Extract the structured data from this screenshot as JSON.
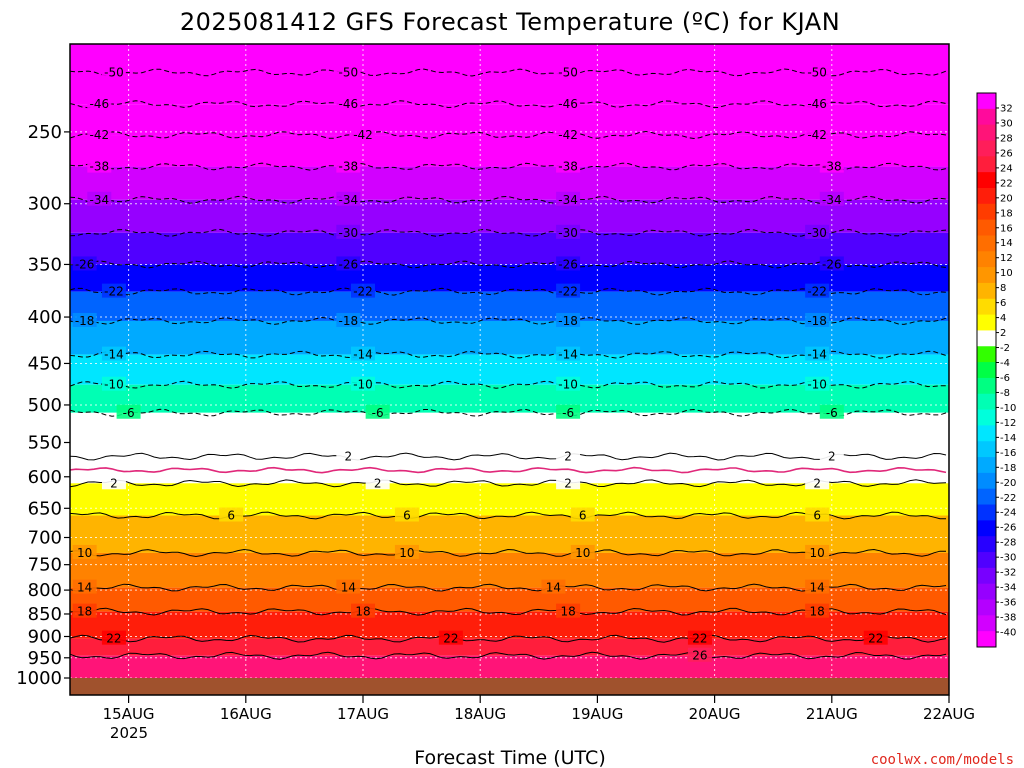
{
  "chart_data": {
    "type": "heatmap",
    "title": "2025081412 GFS Forecast Temperature (ºC) for KJAN",
    "xlabel": "Forecast Time (UTC)",
    "ylabel": "",
    "credit": "coolwx.com/models",
    "x_ticks": [
      "15AUG",
      "16AUG",
      "17AUG",
      "18AUG",
      "19AUG",
      "20AUG",
      "21AUG",
      "22AUG"
    ],
    "x_tick_year": "2025",
    "x_range": [
      "2025-08-14T12",
      "2025-08-22T00"
    ],
    "y_ticks": [
      250,
      300,
      350,
      400,
      450,
      500,
      550,
      600,
      650,
      700,
      750,
      800,
      850,
      900,
      950,
      1000
    ],
    "ylim": [
      200,
      1010
    ],
    "y_scale": "log (pressure, hPa)",
    "colorbar": {
      "labels": [
        "32",
        "30",
        "28",
        "26",
        "24",
        "22",
        "20",
        "18",
        "16",
        "14",
        "12",
        "10",
        "8",
        "6",
        "4",
        "2",
        "-2",
        "-4",
        "-6",
        "-8",
        "-10",
        "-12",
        "-14",
        "-16",
        "-18",
        "-20",
        "-22",
        "-24",
        "-26",
        "-28",
        "-30",
        "-32",
        "-34",
        "-36",
        "-38",
        "-40"
      ],
      "colors": [
        "#ff00ff",
        "#ff0a9c",
        "#ff1478",
        "#ff1e5a",
        "#ff1e3c",
        "#ff0000",
        "#ff1e0a",
        "#ff3c00",
        "#ff5a00",
        "#ff6e00",
        "#ff8200",
        "#ff9600",
        "#ffb400",
        "#ffdc00",
        "#ffff00",
        "#ffffff",
        "#32ff00",
        "#00ff46",
        "#00ff82",
        "#00ffb4",
        "#00ffdc",
        "#00e6ff",
        "#00c8ff",
        "#00aaff",
        "#008cff",
        "#0064ff",
        "#0032ff",
        "#0000ff",
        "#2800ff",
        "#5000ff",
        "#7800ff",
        "#9600ff",
        "#b400ff",
        "#d200ff",
        "#ff00ff"
      ]
    },
    "isotherms": [
      {
        "value": -50,
        "p": 215,
        "labels_at": [
          "2025-08-14T21",
          "2025-08-16T21",
          "2025-08-18T18",
          "2025-08-20T21"
        ]
      },
      {
        "value": -46,
        "p": 233,
        "labels_at": [
          "2025-08-14T18",
          "2025-08-16T21",
          "2025-08-18T18",
          "2025-08-20T21"
        ]
      },
      {
        "value": -42,
        "p": 252,
        "labels_at": [
          "2025-08-14T18",
          "2025-08-17T00",
          "2025-08-18T18",
          "2025-08-20T21"
        ]
      },
      {
        "value": -38,
        "p": 273,
        "labels_at": [
          "2025-08-14T18",
          "2025-08-16T21",
          "2025-08-18T18",
          "2025-08-21T00"
        ]
      },
      {
        "value": -34,
        "p": 297,
        "labels_at": [
          "2025-08-14T18",
          "2025-08-16T21",
          "2025-08-18T18",
          "2025-08-21T00"
        ]
      },
      {
        "value": -30,
        "p": 323,
        "labels_at": [
          "2025-08-16T21",
          "2025-08-18T18",
          "2025-08-20T21"
        ]
      },
      {
        "value": -26,
        "p": 350,
        "labels_at": [
          "2025-08-14T15",
          "2025-08-16T21",
          "2025-08-18T18",
          "2025-08-21T00"
        ]
      },
      {
        "value": -22,
        "p": 375,
        "labels_at": [
          "2025-08-14T21",
          "2025-08-17T00",
          "2025-08-18T18",
          "2025-08-20T21"
        ]
      },
      {
        "value": -18,
        "p": 404,
        "labels_at": [
          "2025-08-14T15",
          "2025-08-16T21",
          "2025-08-18T18",
          "2025-08-20T21"
        ]
      },
      {
        "value": -14,
        "p": 440,
        "labels_at": [
          "2025-08-14T21",
          "2025-08-17T00",
          "2025-08-18T18",
          "2025-08-20T21"
        ]
      },
      {
        "value": -10,
        "p": 475,
        "labels_at": [
          "2025-08-14T21",
          "2025-08-17T00",
          "2025-08-18T18",
          "2025-08-20T21"
        ]
      },
      {
        "value": -6,
        "p": 510,
        "labels_at": [
          "2025-08-15T00",
          "2025-08-17T03",
          "2025-08-18T18",
          "2025-08-21T00"
        ]
      },
      {
        "value": 2,
        "p": 570,
        "labels_at": [
          "2025-08-16T21",
          "2025-08-18T18",
          "2025-08-21T00"
        ]
      },
      {
        "value": 2,
        "p": 610,
        "labels_at": [
          "2025-08-14T21",
          "2025-08-17T03",
          "2025-08-18T18",
          "2025-08-20T21"
        ]
      },
      {
        "value": 6,
        "p": 662,
        "labels_at": [
          "2025-08-15T21",
          "2025-08-17T09",
          "2025-08-18T21",
          "2025-08-20T21"
        ]
      },
      {
        "value": 10,
        "p": 728,
        "labels_at": [
          "2025-08-14T15",
          "2025-08-17T09",
          "2025-08-18T21",
          "2025-08-20T21"
        ]
      },
      {
        "value": 14,
        "p": 795,
        "labels_at": [
          "2025-08-14T15",
          "2025-08-16T21",
          "2025-08-18T15",
          "2025-08-20T21"
        ]
      },
      {
        "value": 18,
        "p": 845,
        "labels_at": [
          "2025-08-14T15",
          "2025-08-17T00",
          "2025-08-18T18",
          "2025-08-20T21"
        ]
      },
      {
        "value": 22,
        "p": 905,
        "labels_at": [
          "2025-08-14T21",
          "2025-08-17T18",
          "2025-08-19T21",
          "2025-08-21T09"
        ]
      },
      {
        "value": 26,
        "p": 945,
        "labels_at": [
          "2025-08-19T21"
        ]
      }
    ],
    "freezing_line_p": 590
  }
}
